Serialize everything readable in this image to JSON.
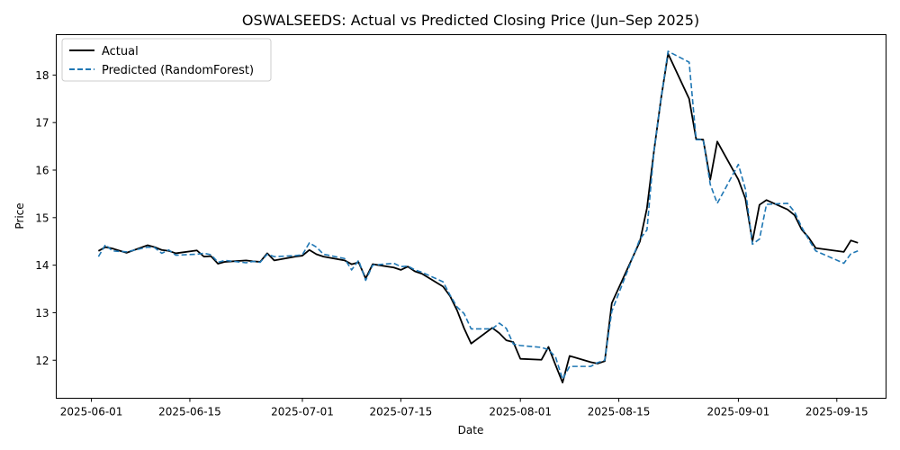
{
  "chart_data": {
    "type": "line",
    "title": "OSWALSEEDS: Actual vs Predicted Closing Price (Jun–Sep 2025)",
    "xlabel": "Date",
    "ylabel": "Price",
    "xlim": [
      "2025-05-27",
      "2025-09-22"
    ],
    "ylim": [
      11.2,
      18.85
    ],
    "x_ticks": [
      "2025-06-01",
      "2025-06-15",
      "2025-07-01",
      "2025-07-15",
      "2025-08-01",
      "2025-08-15",
      "2025-09-01",
      "2025-09-15"
    ],
    "y_ticks": [
      12,
      13,
      14,
      15,
      16,
      17,
      18
    ],
    "grid": false,
    "legend_position": "top-left",
    "colors": {
      "actual": "#000000",
      "predicted": "#1f77b4"
    },
    "x": [
      "2025-06-02",
      "2025-06-03",
      "2025-06-04",
      "2025-06-06",
      "2025-06-09",
      "2025-06-10",
      "2025-06-11",
      "2025-06-12",
      "2025-06-13",
      "2025-06-16",
      "2025-06-17",
      "2025-06-18",
      "2025-06-19",
      "2025-06-20",
      "2025-06-23",
      "2025-06-24",
      "2025-06-25",
      "2025-06-26",
      "2025-06-27",
      "2025-06-30",
      "2025-07-01",
      "2025-07-02",
      "2025-07-03",
      "2025-07-04",
      "2025-07-07",
      "2025-07-08",
      "2025-07-09",
      "2025-07-10",
      "2025-07-11",
      "2025-07-14",
      "2025-07-15",
      "2025-07-16",
      "2025-07-17",
      "2025-07-18",
      "2025-07-21",
      "2025-07-22",
      "2025-07-23",
      "2025-07-24",
      "2025-07-25",
      "2025-07-28",
      "2025-07-29",
      "2025-07-30",
      "2025-07-31",
      "2025-08-01",
      "2025-08-04",
      "2025-08-05",
      "2025-08-06",
      "2025-08-07",
      "2025-08-08",
      "2025-08-11",
      "2025-08-12",
      "2025-08-13",
      "2025-08-14",
      "2025-08-18",
      "2025-08-19",
      "2025-08-20",
      "2025-08-21",
      "2025-08-22",
      "2025-08-25",
      "2025-08-26",
      "2025-08-27",
      "2025-08-28",
      "2025-08-29",
      "2025-09-01",
      "2025-09-02",
      "2025-09-03",
      "2025-09-04",
      "2025-09-05",
      "2025-09-08",
      "2025-09-09",
      "2025-09-10",
      "2025-09-11",
      "2025-09-12",
      "2025-09-16",
      "2025-09-17",
      "2025-09-18"
    ],
    "series": [
      {
        "name": "Actual",
        "values": [
          14.3,
          14.38,
          14.35,
          14.26,
          14.42,
          14.38,
          14.32,
          14.3,
          14.25,
          14.31,
          14.18,
          14.19,
          14.03,
          14.07,
          14.1,
          14.08,
          14.07,
          14.25,
          14.1,
          14.18,
          14.2,
          14.32,
          14.23,
          14.18,
          14.1,
          14.02,
          14.06,
          13.72,
          14.02,
          13.95,
          13.9,
          13.97,
          13.87,
          13.82,
          13.55,
          13.35,
          13.05,
          12.67,
          12.35,
          12.68,
          12.57,
          12.42,
          12.38,
          12.03,
          12.01,
          12.28,
          11.9,
          11.53,
          12.09,
          11.96,
          11.93,
          11.98,
          13.2,
          14.5,
          15.2,
          16.4,
          17.5,
          18.45,
          17.5,
          16.65,
          16.64,
          15.8,
          16.6,
          15.8,
          15.4,
          14.5,
          15.27,
          15.37,
          15.17,
          15.05,
          14.75,
          14.58,
          14.36,
          14.28,
          14.52,
          14.47
        ]
      },
      {
        "name": "Predicted (RandomForest)",
        "values": [
          14.18,
          14.43,
          14.3,
          14.28,
          14.38,
          14.37,
          14.25,
          14.32,
          14.21,
          14.23,
          14.25,
          14.22,
          14.06,
          14.1,
          14.05,
          14.08,
          14.06,
          14.23,
          14.18,
          14.2,
          14.22,
          14.47,
          14.38,
          14.23,
          14.14,
          13.9,
          14.1,
          13.68,
          14.0,
          14.04,
          13.97,
          13.98,
          13.9,
          13.85,
          13.65,
          13.37,
          13.12,
          12.98,
          12.66,
          12.66,
          12.78,
          12.67,
          12.34,
          12.31,
          12.27,
          12.22,
          12.07,
          11.6,
          11.87,
          11.87,
          11.95,
          12.0,
          13.03,
          14.55,
          14.74,
          16.4,
          17.5,
          18.5,
          18.27,
          16.64,
          16.64,
          15.7,
          15.3,
          16.12,
          15.6,
          14.44,
          14.55,
          15.28,
          15.3,
          15.12,
          14.8,
          14.54,
          14.3,
          14.04,
          14.24,
          14.3
        ]
      }
    ]
  }
}
